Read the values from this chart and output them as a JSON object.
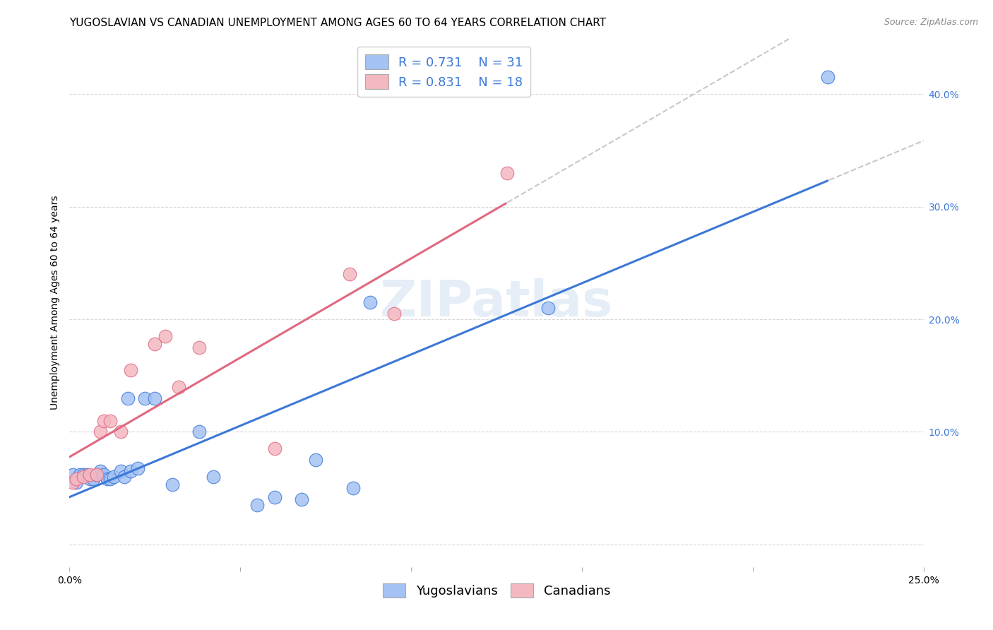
{
  "title": "YUGOSLAVIAN VS CANADIAN UNEMPLOYMENT AMONG AGES 60 TO 64 YEARS CORRELATION CHART",
  "source": "Source: ZipAtlas.com",
  "ylabel": "Unemployment Among Ages 60 to 64 years",
  "xlim": [
    0.0,
    0.25
  ],
  "ylim": [
    -0.02,
    0.45
  ],
  "xticks": [
    0.0,
    0.05,
    0.1,
    0.15,
    0.2,
    0.25
  ],
  "yticks": [
    0.0,
    0.1,
    0.2,
    0.3,
    0.4
  ],
  "ytick_labels_right": [
    "",
    "10.0%",
    "20.0%",
    "30.0%",
    "40.0%"
  ],
  "background_color": "#ffffff",
  "yugoslavian_color": "#a4c2f4",
  "canadian_color": "#f4b8c1",
  "trendline_yugo_color": "#3c78d8",
  "trendline_cdn_color": "#e06880",
  "trendline_dash_color": "#c8c8c8",
  "R_yugo": 0.731,
  "N_yugo": 31,
  "R_cdn": 0.831,
  "N_cdn": 18,
  "yugo_x": [
    0.001,
    0.002,
    0.003,
    0.004,
    0.005,
    0.006,
    0.007,
    0.008,
    0.009,
    0.01,
    0.011,
    0.012,
    0.013,
    0.015,
    0.016,
    0.017,
    0.018,
    0.02,
    0.022,
    0.025,
    0.03,
    0.038,
    0.042,
    0.055,
    0.06,
    0.068,
    0.072,
    0.083,
    0.088,
    0.14,
    0.222
  ],
  "yugo_y": [
    0.062,
    0.055,
    0.062,
    0.062,
    0.062,
    0.058,
    0.058,
    0.062,
    0.065,
    0.062,
    0.058,
    0.058,
    0.06,
    0.065,
    0.06,
    0.13,
    0.065,
    0.068,
    0.13,
    0.13,
    0.053,
    0.1,
    0.06,
    0.035,
    0.042,
    0.04,
    0.075,
    0.05,
    0.215,
    0.21,
    0.415
  ],
  "cdn_x": [
    0.001,
    0.002,
    0.004,
    0.006,
    0.008,
    0.009,
    0.01,
    0.012,
    0.015,
    0.018,
    0.025,
    0.028,
    0.032,
    0.038,
    0.06,
    0.082,
    0.095,
    0.128
  ],
  "cdn_y": [
    0.055,
    0.058,
    0.06,
    0.062,
    0.062,
    0.1,
    0.11,
    0.11,
    0.1,
    0.155,
    0.178,
    0.185,
    0.14,
    0.175,
    0.085,
    0.24,
    0.205,
    0.33
  ],
  "grid_color": "#d8d8d8",
  "title_fontsize": 11,
  "axis_label_fontsize": 10,
  "tick_fontsize": 10,
  "legend_fontsize": 13
}
